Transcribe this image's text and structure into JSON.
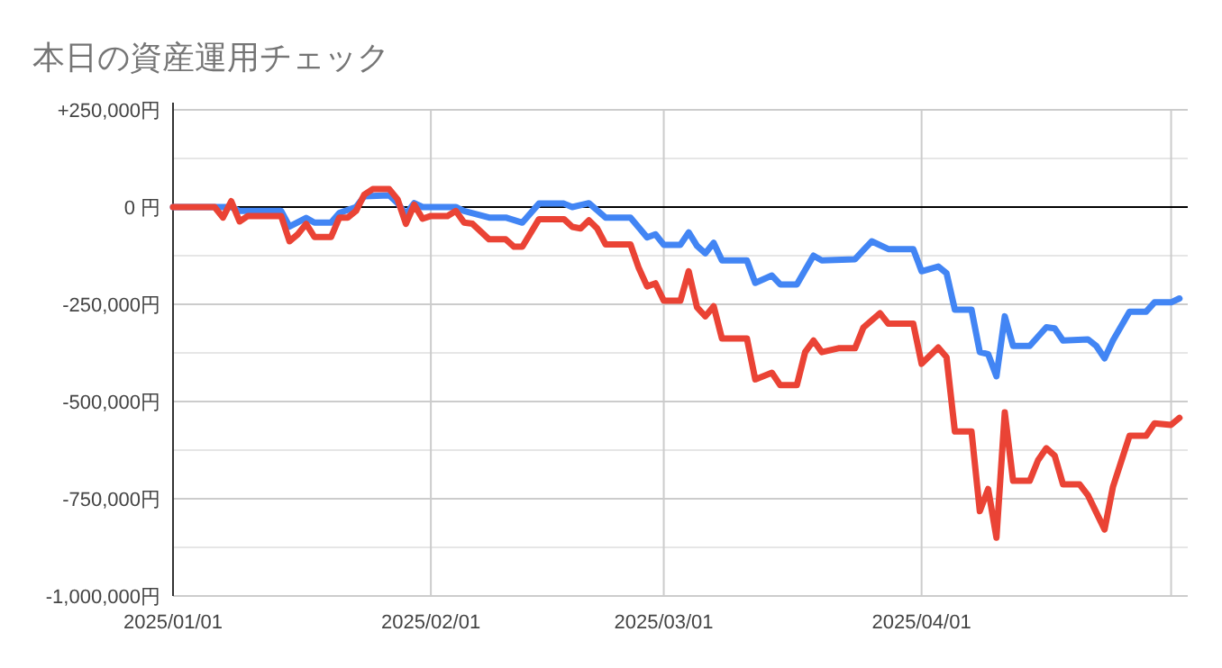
{
  "chart_data": {
    "type": "line",
    "title": "本日の資産運用チェック",
    "xlim": [
      "2025-01-01",
      "2025-05-03"
    ],
    "xticks": [
      {
        "value": "2025-01-01",
        "label": "2025/01/01"
      },
      {
        "value": "2025-02-01",
        "label": "2025/02/01"
      },
      {
        "value": "2025-03-01",
        "label": "2025/03/01"
      },
      {
        "value": "2025-04-01",
        "label": "2025/04/01"
      },
      {
        "value": "2025-05-01",
        "label": null
      }
    ],
    "ylim": [
      -1000000,
      250000
    ],
    "yticks": [
      {
        "value": -1000000,
        "label": "-1,000,000円"
      },
      {
        "value": -875000,
        "label": null
      },
      {
        "value": -750000,
        "label": "-750,000円"
      },
      {
        "value": -625000,
        "label": null
      },
      {
        "value": -500000,
        "label": "-500,000円"
      },
      {
        "value": -375000,
        "label": null
      },
      {
        "value": -250000,
        "label": "-250,000円"
      },
      {
        "value": -125000,
        "label": null
      },
      {
        "value": 0,
        "label": "0 円"
      },
      {
        "value": 125000,
        "label": null
      },
      {
        "value": 250000,
        "label": "+250,000円"
      }
    ],
    "grid": true,
    "line_style": "solid",
    "ref_lines": [
      {
        "axis": "y",
        "value": 0,
        "color": "#000000"
      }
    ],
    "series": [
      {
        "color": "#4285f4",
        "x": [
          "2025-01-01",
          "2025-01-06",
          "2025-01-08",
          "2025-01-09",
          "2025-01-14",
          "2025-01-15",
          "2025-01-17",
          "2025-01-18",
          "2025-01-20",
          "2025-01-21",
          "2025-01-23",
          "2025-01-24",
          "2025-01-27",
          "2025-01-28",
          "2025-01-29",
          "2025-01-30",
          "2025-01-31",
          "2025-02-04",
          "2025-02-05",
          "2025-02-08",
          "2025-02-10",
          "2025-02-12",
          "2025-02-14",
          "2025-02-17",
          "2025-02-18",
          "2025-02-20",
          "2025-02-22",
          "2025-02-25",
          "2025-02-27",
          "2025-02-28",
          "2025-03-01",
          "2025-03-03",
          "2025-03-04",
          "2025-03-05",
          "2025-03-06",
          "2025-03-07",
          "2025-03-08",
          "2025-03-11",
          "2025-03-12",
          "2025-03-14",
          "2025-03-15",
          "2025-03-17",
          "2025-03-19",
          "2025-03-20",
          "2025-03-24",
          "2025-03-25",
          "2025-03-26",
          "2025-03-28",
          "2025-03-31",
          "2025-04-01",
          "2025-04-03",
          "2025-04-04",
          "2025-04-05",
          "2025-04-07",
          "2025-04-08",
          "2025-04-09",
          "2025-04-10",
          "2025-04-11",
          "2025-04-12",
          "2025-04-14",
          "2025-04-16",
          "2025-04-17",
          "2025-04-18",
          "2025-04-21",
          "2025-04-22",
          "2025-04-23",
          "2025-04-24",
          "2025-04-26",
          "2025-04-28",
          "2025-04-29",
          "2025-05-01",
          "2025-05-02"
        ],
        "values": [
          0,
          0,
          0,
          -10000,
          -10000,
          -50000,
          -28000,
          -40000,
          -40000,
          -15000,
          0,
          28000,
          30000,
          10000,
          -18000,
          10000,
          0,
          0,
          -10000,
          -27000,
          -27000,
          -40000,
          9000,
          9000,
          0,
          10000,
          -27000,
          -27000,
          -78000,
          -70000,
          -97000,
          -97000,
          -65000,
          -100000,
          -119000,
          -92000,
          -137000,
          -137000,
          -195000,
          -176000,
          -199000,
          -199000,
          -125000,
          -137000,
          -134000,
          -111000,
          -88000,
          -108000,
          -108000,
          -165000,
          -153000,
          -170000,
          -264000,
          -264000,
          -373000,
          -378000,
          -435000,
          -281000,
          -357000,
          -357000,
          -309000,
          -312000,
          -343000,
          -340000,
          -357000,
          -389000,
          -343000,
          -269000,
          -269000,
          -245000,
          -245000,
          -235000
        ]
      },
      {
        "color": "#ea4335",
        "x": [
          "2025-01-01",
          "2025-01-06",
          "2025-01-07",
          "2025-01-08",
          "2025-01-09",
          "2025-01-10",
          "2025-01-14",
          "2025-01-15",
          "2025-01-16",
          "2025-01-17",
          "2025-01-18",
          "2025-01-20",
          "2025-01-21",
          "2025-01-22",
          "2025-01-23",
          "2025-01-24",
          "2025-01-25",
          "2025-01-27",
          "2025-01-28",
          "2025-01-29",
          "2025-01-30",
          "2025-01-31",
          "2025-02-01",
          "2025-02-03",
          "2025-02-04",
          "2025-02-05",
          "2025-02-06",
          "2025-02-08",
          "2025-02-10",
          "2025-02-11",
          "2025-02-12",
          "2025-02-14",
          "2025-02-17",
          "2025-02-18",
          "2025-02-19",
          "2025-02-20",
          "2025-02-21",
          "2025-02-22",
          "2025-02-25",
          "2025-02-26",
          "2025-02-27",
          "2025-02-28",
          "2025-03-01",
          "2025-03-03",
          "2025-03-04",
          "2025-03-05",
          "2025-03-06",
          "2025-03-07",
          "2025-03-08",
          "2025-03-11",
          "2025-03-12",
          "2025-03-14",
          "2025-03-15",
          "2025-03-17",
          "2025-03-18",
          "2025-03-19",
          "2025-03-20",
          "2025-03-22",
          "2025-03-24",
          "2025-03-25",
          "2025-03-27",
          "2025-03-28",
          "2025-03-31",
          "2025-04-01",
          "2025-04-03",
          "2025-04-04",
          "2025-04-05",
          "2025-04-07",
          "2025-04-08",
          "2025-04-09",
          "2025-04-10",
          "2025-04-11",
          "2025-04-12",
          "2025-04-14",
          "2025-04-15",
          "2025-04-16",
          "2025-04-17",
          "2025-04-18",
          "2025-04-20",
          "2025-04-21",
          "2025-04-23",
          "2025-04-24",
          "2025-04-26",
          "2025-04-28",
          "2025-04-29",
          "2025-05-01",
          "2025-05-02"
        ],
        "values": [
          0,
          0,
          -27000,
          15000,
          -37000,
          -23000,
          -23000,
          -88000,
          -70000,
          -43000,
          -77000,
          -77000,
          -27000,
          -27000,
          -10000,
          32000,
          46000,
          46000,
          20000,
          -43000,
          6000,
          -30000,
          -23000,
          -23000,
          -10000,
          -40000,
          -43000,
          -83000,
          -83000,
          -102000,
          -102000,
          -31000,
          -31000,
          -51000,
          -55000,
          -34000,
          -55000,
          -96000,
          -96000,
          -157000,
          -204000,
          -196000,
          -241000,
          -241000,
          -165000,
          -258000,
          -281000,
          -255000,
          -338000,
          -338000,
          -443000,
          -426000,
          -458000,
          -458000,
          -373000,
          -343000,
          -373000,
          -363000,
          -363000,
          -310000,
          -273000,
          -300000,
          -300000,
          -403000,
          -361000,
          -386000,
          -577000,
          -577000,
          -782000,
          -725000,
          -850000,
          -528000,
          -704000,
          -704000,
          -651000,
          -620000,
          -639000,
          -713000,
          -713000,
          -741000,
          -829000,
          -720000,
          -588000,
          -588000,
          -556000,
          -560000,
          -542000
        ]
      }
    ]
  }
}
